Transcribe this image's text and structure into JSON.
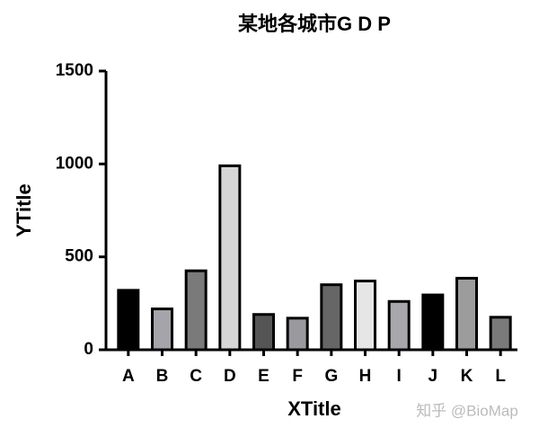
{
  "chart_data": {
    "type": "bar",
    "title": "某地各城市G D P",
    "x_label": "XTitle",
    "y_label": "YTitle",
    "categories": [
      "A",
      "B",
      "C",
      "D",
      "E",
      "F",
      "G",
      "H",
      "I",
      "J",
      "K",
      "L"
    ],
    "values": [
      320,
      220,
      425,
      990,
      190,
      170,
      350,
      370,
      260,
      295,
      385,
      175
    ],
    "colors": [
      "#000000",
      "#a4a4aa",
      "#7a7a7a",
      "#d6d6d6",
      "#555555",
      "#9a9a9e",
      "#666666",
      "#e6e6e6",
      "#a8a8ac",
      "#000000",
      "#9c9c9c",
      "#7a7a7a"
    ],
    "ylim": [
      0,
      1500
    ],
    "yticks": [
      0,
      500,
      1000,
      1500
    ],
    "grid": false,
    "watermark": "知乎 @BioMap"
  }
}
